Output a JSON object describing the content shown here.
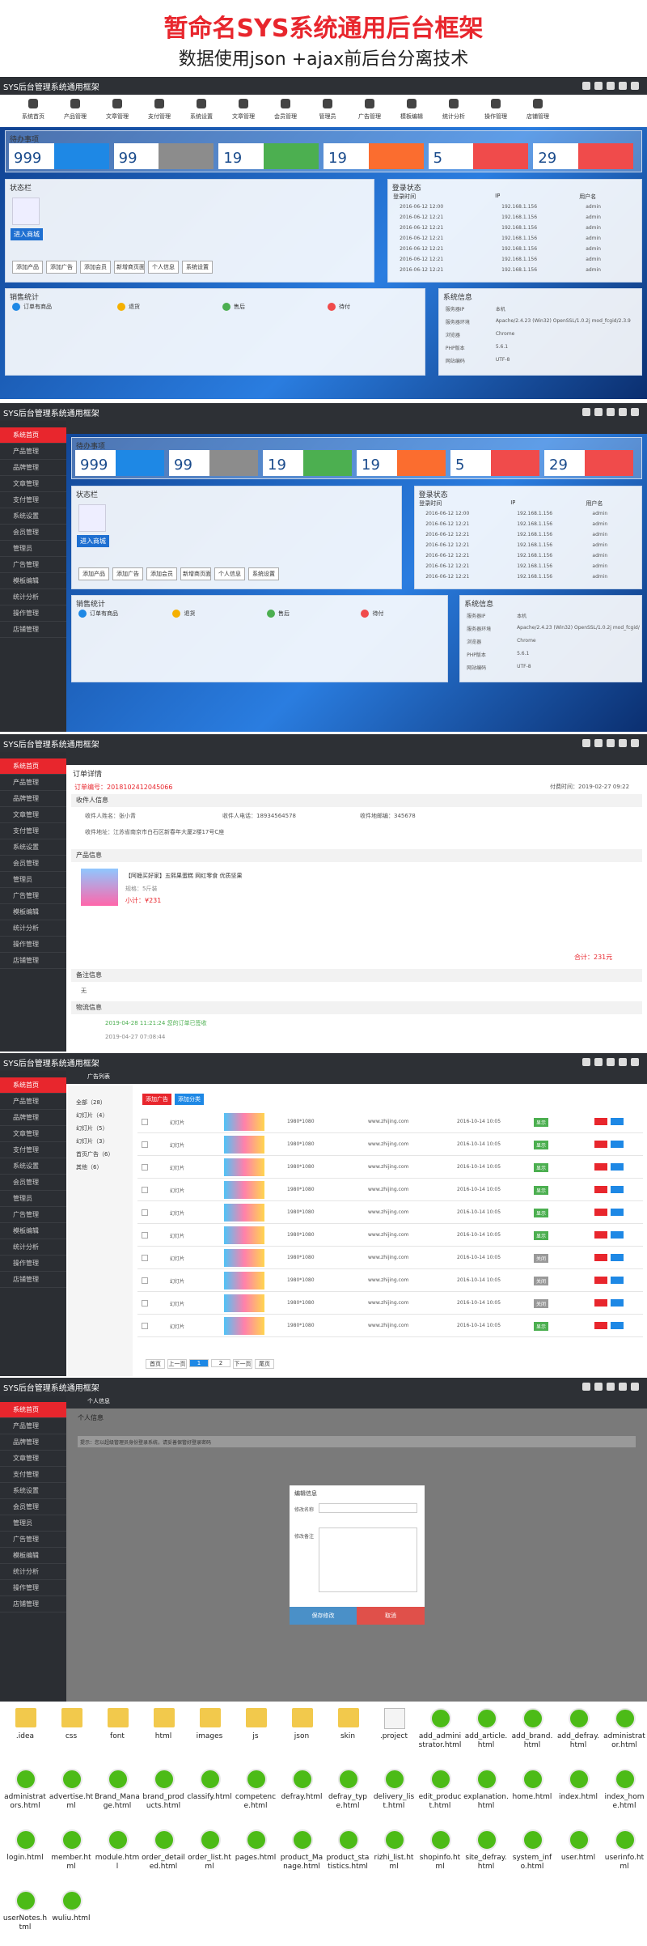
{
  "header": {
    "title": "暂命名SYS系统通用后台框架",
    "subtitle": "数据使用json +ajax前后台分离技术"
  },
  "app_title": "SYS后台管理系统通用框架",
  "top_nav": [
    "系统首页",
    "产品管理",
    "文章管理",
    "支付管理",
    "系统设置",
    "文章管理",
    "会员管理",
    "管理员",
    "广告管理",
    "模板编辑",
    "统计分析",
    "操作管理",
    "店铺管理"
  ],
  "sidebar": [
    "系统首页",
    "产品管理",
    "品牌管理",
    "文章管理",
    "支付管理",
    "系统设置",
    "会员管理",
    "管理员",
    "广告管理",
    "模板编辑",
    "统计分析",
    "操作管理",
    "店铺管理"
  ],
  "dashboard": {
    "todo_title": "待办事项",
    "stats": [
      {
        "value": 999,
        "color": "#1e88e5"
      },
      {
        "value": 99,
        "color": "#8c8c8c"
      },
      {
        "value": 19,
        "color": "#4caf50"
      },
      {
        "value": 19,
        "color": "#fb6d2f"
      },
      {
        "value": 5,
        "color": "#f04b4b"
      },
      {
        "value": 29,
        "color": "#f04b4b"
      }
    ],
    "status_title": "状态栏",
    "enter_button": "进入商城",
    "quick_buttons": [
      "添加产品",
      "添加广告",
      "添加会员",
      "新增商页面",
      "个人信息",
      "系统设置"
    ],
    "login_title": "登录状态",
    "login_columns": [
      "登录时间",
      "IP",
      "用户名"
    ],
    "login_rows": [
      [
        "2016-06-12 12:00",
        "192.168.1.156",
        "admin"
      ],
      [
        "2016-06-12 12:21",
        "192.168.1.156",
        "admin"
      ],
      [
        "2016-06-12 12:21",
        "192.168.1.156",
        "admin"
      ],
      [
        "2016-06-12 12:21",
        "192.168.1.156",
        "admin"
      ],
      [
        "2016-06-12 12:21",
        "192.168.1.156",
        "admin"
      ],
      [
        "2016-06-12 12:21",
        "192.168.1.156",
        "admin"
      ],
      [
        "2016-06-12 12:21",
        "192.168.1.156",
        "admin"
      ]
    ],
    "sales_title": "销售统计",
    "sales_heads": [
      "订单有商品",
      "退货",
      "售后",
      "待付"
    ],
    "sys_title": "系统信息",
    "sys_items": [
      [
        "服务器IP",
        "本机"
      ],
      [
        "服务器环境",
        "Apache/2.4.23 (Win32) OpenSSL/1.0.2j mod_fcgid/2.3.9"
      ],
      [
        "浏览器",
        "Chrome"
      ],
      [
        "PHP版本",
        "5.6.1"
      ],
      [
        "网站编码",
        "UTF-8"
      ]
    ]
  },
  "order": {
    "title": "订单详情",
    "number": "订单编号：2018102412045066",
    "time": "付费时间：2019-02-27 09:22",
    "sections": [
      "收件人信息",
      "产品信息",
      "备注信息",
      "物流信息"
    ],
    "receiver": [
      "收件人姓名：张小青",
      "收件人电话：18934564578",
      "收件地邮编：345678"
    ],
    "address": "收件地址：江苏省南京市白石区新春年大厦2楼17号C座",
    "product_name": "【阿嬷买好家】五熙果蛋糕 网红零食 优质坚果",
    "product_spec": "规格：5斤装",
    "price": "小计：¥231",
    "total": "合计：231元",
    "remark": "无",
    "logistics": [
      "2019-04-28 11:21:24 您的订单已签收",
      "2019-04-27 07:08:44"
    ]
  },
  "ads": {
    "tab": "广告列表",
    "buttons": [
      "添加广告",
      "添加分类"
    ],
    "tree": [
      "全部（28）",
      "幻灯片（4）",
      "幻灯片（5）",
      "幻灯片（3）",
      "首页广告（6）",
      "其他（6）"
    ],
    "rows": [
      [
        "幻灯片",
        "1980*1080",
        "www.zhijing.com",
        "2016-10-14 10:05",
        "显示"
      ],
      [
        "幻灯片",
        "1980*1080",
        "www.zhijing.com",
        "2016-10-14 10:05",
        "显示"
      ],
      [
        "幻灯片",
        "1980*1080",
        "www.zhijing.com",
        "2016-10-14 10:05",
        "显示"
      ],
      [
        "幻灯片",
        "1980*1080",
        "www.zhijing.com",
        "2016-10-14 10:05",
        "显示"
      ],
      [
        "幻灯片",
        "1980*1080",
        "www.zhijing.com",
        "2016-10-14 10:05",
        "显示"
      ],
      [
        "幻灯片",
        "1980*1080",
        "www.zhijing.com",
        "2016-10-14 10:05",
        "显示"
      ],
      [
        "幻灯片",
        "1980*1080",
        "www.zhijing.com",
        "2016-10-14 10:05",
        "关闭"
      ],
      [
        "幻灯片",
        "1980*1080",
        "www.zhijing.com",
        "2016-10-14 10:05",
        "关闭"
      ],
      [
        "幻灯片",
        "1980*1080",
        "www.zhijing.com",
        "2016-10-14 10:05",
        "关闭"
      ],
      [
        "幻灯片",
        "1980*1080",
        "www.zhijing.com",
        "2016-10-14 10:05",
        "显示"
      ]
    ],
    "pagination": [
      "首页",
      "上一页",
      "1",
      "2",
      "下一页",
      "尾页"
    ]
  },
  "profile": {
    "tab": "个人信息",
    "page_title": "个人信息",
    "notice": "提示：您以超级管理员身份登录系统，请妥善保管好登录密码",
    "modal_title": "编辑信息",
    "fields": [
      "修改名称",
      "修改备注"
    ],
    "ok": "保存修改",
    "cancel": "取消"
  },
  "files": [
    ".idea",
    "css",
    "font",
    "html",
    "images",
    "js",
    "json",
    "skin",
    ".project",
    "add_administrator.html",
    "add_article.html",
    "add_brand.html",
    "add_defray.html",
    "administrator.html",
    "administrators.html",
    "advertise.html",
    "Brand_Manage.html",
    "brand_products.html",
    "classify.html",
    "competence.html",
    "defray.html",
    "defray_type.html",
    "delivery_list.html",
    "edit_product.html",
    "explanation.html",
    "home.html",
    "index.html",
    "index_home.html",
    "login.html",
    "member.html",
    "module.html",
    "order_detailed.html",
    "order_list.html",
    "pages.html",
    "product_Manage.html",
    "product_statistics.html",
    "rizhi_list.html",
    "shopinfo.html",
    "site_defray.html",
    "system_info.html",
    "user.html",
    "userinfo.html",
    "userNotes.html",
    "wuliu.html"
  ],
  "folder_count": 8
}
